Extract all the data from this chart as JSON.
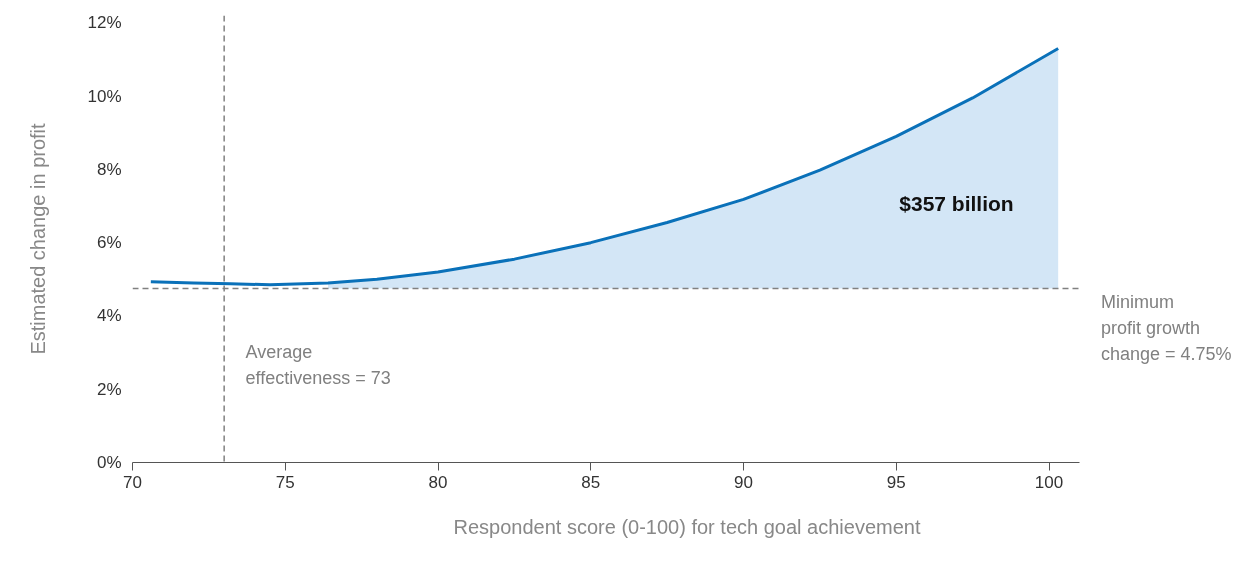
{
  "chart_data": {
    "type": "line",
    "xlabel": "Respondent score (0-100) for tech goal achievement",
    "ylabel": "Estimated change in profit",
    "x": [
      70.6,
      72,
      73.2,
      74.5,
      76.4,
      78,
      80,
      82.5,
      85,
      87.5,
      90,
      92.5,
      95,
      97.5,
      100.3
    ],
    "series": [
      {
        "color": "#0a71b9",
        "values": [
          4.93,
          4.9,
          4.88,
          4.85,
          4.9,
          5.0,
          5.2,
          5.55,
          6.0,
          6.55,
          7.18,
          7.98,
          8.9,
          9.95,
          11.3
        ],
        "lower": [
          null,
          null,
          null,
          null,
          4.75,
          4.75,
          4.75,
          4.75,
          4.75,
          4.75,
          4.75,
          4.75,
          4.75,
          4.75,
          4.75
        ],
        "upper": [
          null,
          null,
          null,
          null,
          4.9,
          5.0,
          5.2,
          5.55,
          6.0,
          6.55,
          7.18,
          7.98,
          8.9,
          9.95,
          11.3
        ]
      }
    ],
    "xlim": [
      70,
      101
    ],
    "ylim": [
      0,
      12.2
    ],
    "xticks": [
      70,
      75,
      80,
      85,
      90,
      95,
      100
    ],
    "yticks": [
      {
        "value": 0,
        "label": "0%"
      },
      {
        "value": 2,
        "label": "2%"
      },
      {
        "value": 4,
        "label": "4%"
      },
      {
        "value": 6,
        "label": "6%"
      },
      {
        "value": 8,
        "label": "8%"
      },
      {
        "value": 10,
        "label": "10%"
      },
      {
        "value": 12,
        "label": "12%"
      }
    ],
    "grid": false,
    "marker": "none",
    "line_style": "solid",
    "ref_lines": [
      {
        "axis": "x",
        "value": 73,
        "label": "Average\neffectiveness = 73",
        "color": "#808080",
        "line_style": "dashed"
      },
      {
        "axis": "y",
        "value": 4.75,
        "label": "Minimum\nprofit growth\nchange = 4.75%",
        "color": "#808080",
        "line_style": "dashed"
      }
    ],
    "annotations": [
      "$357 billion"
    ]
  }
}
